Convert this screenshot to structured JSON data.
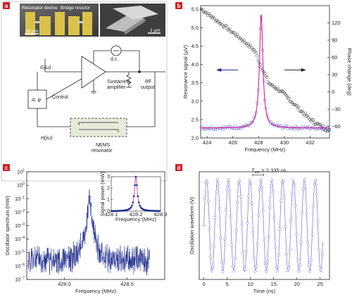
{
  "colors": {
    "panel_tag_bg": "#cf2027",
    "blue_trace": "#1b2a8c",
    "open_circle": "#7070d8",
    "fit_magenta": "#d6209a",
    "gray_circle": "#333333",
    "sem_gold": "#d9c24a"
  },
  "panel_a": {
    "tag": "a",
    "sem_left_label": "Resonator device",
    "sem_mid_label": "Bridge resistor",
    "scale_left": "10 μm",
    "scale_right": "1 μm",
    "G_label": "G(ω)",
    "dc_label": "d.c.",
    "sustaining_label_1": "Sustaining",
    "sustaining_label_2": "amplifier",
    "A_phi_label": "A, φ",
    "control_label": "Control",
    "rf_label_1": "RF",
    "rf_label_2": "output",
    "H_label": "H(jω)",
    "nems_label_1": "NEMS",
    "nems_label_2": "resonator"
  },
  "chart_data": [
    {
      "panel": "b",
      "type": "scatter",
      "xlabel": "Frequency (MHz)",
      "ylabel": "Resonance signal (μV)",
      "ylabel_right": "Phase change (deg)",
      "xlim": [
        423.5,
        433.5
      ],
      "ylim": [
        2.0,
        5.6
      ],
      "ylim_right": [
        -80,
        150
      ],
      "x_ticks": [
        "424",
        "426",
        "428",
        "430",
        "432"
      ],
      "y_ticks": [
        "2.0",
        "2.5",
        "3.0",
        "3.5",
        "4.0",
        "4.5",
        "5.0",
        "5.5"
      ],
      "y_ticks_right": [
        "−60",
        "−30",
        "0",
        "30",
        "60",
        "90",
        "120"
      ],
      "resonance_center": 428.2,
      "resonance_peak": 5.35,
      "baseline": 2.27,
      "linewidth": 0.32,
      "phase_start": 145,
      "phase_end": -68,
      "phase_curve": [
        [
          423.5,
          145
        ],
        [
          425,
          120
        ],
        [
          426.5,
          95
        ],
        [
          427.7,
          72
        ],
        [
          428.0,
          55
        ],
        [
          428.3,
          40
        ],
        [
          428.8,
          15
        ],
        [
          429.8,
          0
        ],
        [
          430.8,
          -22
        ],
        [
          432,
          -48
        ],
        [
          433.5,
          -68
        ]
      ],
      "series": [
        {
          "values_kind": "amplitude_circles"
        },
        {
          "values_kind": "lorentzian_fit"
        },
        {
          "values_kind": "phase_circles"
        }
      ]
    },
    {
      "panel": "c",
      "type": "line",
      "xlabel": "Frequency (MHz)",
      "ylabel": "Oscillator spectrum (mW)",
      "xlim": [
        427.7,
        428.8
      ],
      "ylim_exp": [
        -7,
        1
      ],
      "x_ticks": [
        "428.0",
        "428.5"
      ],
      "y_ticks_exp": [
        -7,
        -6,
        -5,
        -4,
        -3,
        -2,
        -1,
        0,
        1
      ],
      "peak_x": 428.2,
      "peak_exp": 0.4,
      "inset": {
        "xlabel": "Frequency (MHz)",
        "ylabel": "Signal power (mW)",
        "xlim": [
          428.1,
          428.3
        ],
        "ylim": [
          0,
          3
        ],
        "x_ticks": [
          "428.1",
          "428.2",
          "428.3"
        ],
        "y_ticks": [
          "0",
          "1",
          "2",
          "3"
        ],
        "peak": 3.0,
        "center": 428.2,
        "width": 0.007
      }
    },
    {
      "panel": "d",
      "type": "line",
      "xlabel": "Time (ns)",
      "ylabel": "Oscillation waveform (V)",
      "xlim": [
        -1,
        27
      ],
      "ylim": [
        -0.7,
        0.7
      ],
      "x_ticks": [
        "0",
        "5",
        "10",
        "15",
        "20",
        "25"
      ],
      "period_ns": 2.335,
      "amplitude": 0.6,
      "period_label_sym": "T",
      "period_label_sub": "osc",
      "period_label_rest": " = 2.335 ns"
    }
  ],
  "panel_tags": {
    "b": "b",
    "c": "c",
    "d": "d"
  }
}
